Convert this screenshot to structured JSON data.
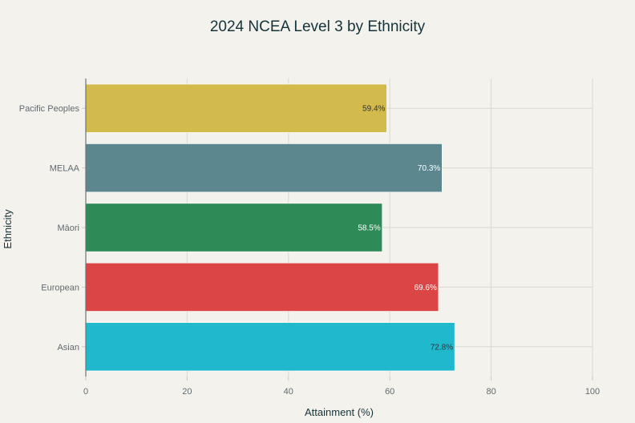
{
  "chart_data": {
    "type": "bar",
    "orientation": "horizontal",
    "title": "2024 NCEA Level 3 by Ethnicity",
    "xlabel": "Attainment (%)",
    "ylabel": "Ethnicity",
    "xlim": [
      0,
      100
    ],
    "xticks": [
      0,
      20,
      40,
      60,
      80,
      100
    ],
    "grid": true,
    "categories": [
      "Asian",
      "European",
      "Māori",
      "MELAA",
      "Pacific Peoples"
    ],
    "values": [
      72.8,
      69.6,
      58.5,
      70.3,
      59.4
    ],
    "data_labels": [
      "72.8%",
      "69.6%",
      "58.5%",
      "70.3%",
      "59.4%"
    ],
    "colors": [
      "#1fb8cd",
      "#db4545",
      "#2e8b57",
      "#5d878f",
      "#d2ba4c"
    ],
    "label_colors": [
      "#333333",
      "#ffffff",
      "#ffffff",
      "#ffffff",
      "#333333"
    ]
  }
}
